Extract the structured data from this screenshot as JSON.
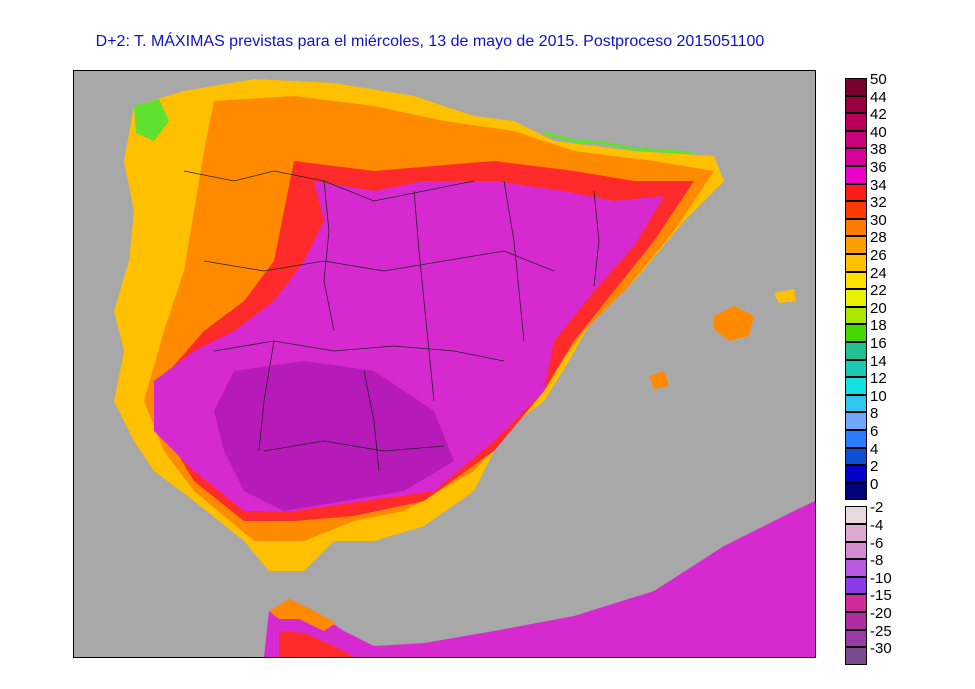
{
  "title": "D+2: T. MÁXIMAS previstas para el miércoles, 13 de mayo de 2015. Postproceso 2015051100",
  "legend": {
    "positive": [
      {
        "label": "50",
        "color": "#7a0030"
      },
      {
        "label": "44",
        "color": "#9a0040"
      },
      {
        "label": "42",
        "color": "#b8005a"
      },
      {
        "label": "40",
        "color": "#cc0078"
      },
      {
        "label": "38",
        "color": "#d8009a"
      },
      {
        "label": "36",
        "color": "#ee00cc"
      },
      {
        "label": "34",
        "color": "#ff1a1a"
      },
      {
        "label": "32",
        "color": "#ff3a00"
      },
      {
        "label": "30",
        "color": "#ff7a00"
      },
      {
        "label": "28",
        "color": "#ff9e00"
      },
      {
        "label": "26",
        "color": "#ffc000"
      },
      {
        "label": "24",
        "color": "#ffe000"
      },
      {
        "label": "22",
        "color": "#e8f000"
      },
      {
        "label": "20",
        "color": "#a8e800"
      },
      {
        "label": "18",
        "color": "#44d800"
      },
      {
        "label": "16",
        "color": "#20c090"
      },
      {
        "label": "14",
        "color": "#18c8b0"
      },
      {
        "label": "12",
        "color": "#10e0e0"
      },
      {
        "label": "10",
        "color": "#30c8f0"
      },
      {
        "label": "8",
        "color": "#70a8ff"
      },
      {
        "label": "6",
        "color": "#2a7cff"
      },
      {
        "label": "4",
        "color": "#0a50d0"
      },
      {
        "label": "2",
        "color": "#0000c8"
      },
      {
        "label": "0",
        "color": "#00007a"
      }
    ],
    "negative": [
      {
        "label": "-2",
        "color": "#e8d8e0"
      },
      {
        "label": "-4",
        "color": "#dcaad0"
      },
      {
        "label": "-6",
        "color": "#d88ad0"
      },
      {
        "label": "-8",
        "color": "#b858e0"
      },
      {
        "label": "-10",
        "color": "#8a3ae8"
      },
      {
        "label": "-15",
        "color": "#d02a9a"
      },
      {
        "label": "-20",
        "color": "#b02aa0"
      },
      {
        "label": "-25",
        "color": "#9a3aa8"
      },
      {
        "label": "-30",
        "color": "#7a4a8a"
      }
    ]
  },
  "colors": {
    "sea": "#a8a8a8",
    "border_lines": "#222222",
    "land_hot": "#d62ad0",
    "land_very_hot": "#b61ab8",
    "land_warm": "#ff2a2a",
    "land_mild": "#ff8a00",
    "land_cool": "#ffc000",
    "land_cold": "#60e030"
  }
}
